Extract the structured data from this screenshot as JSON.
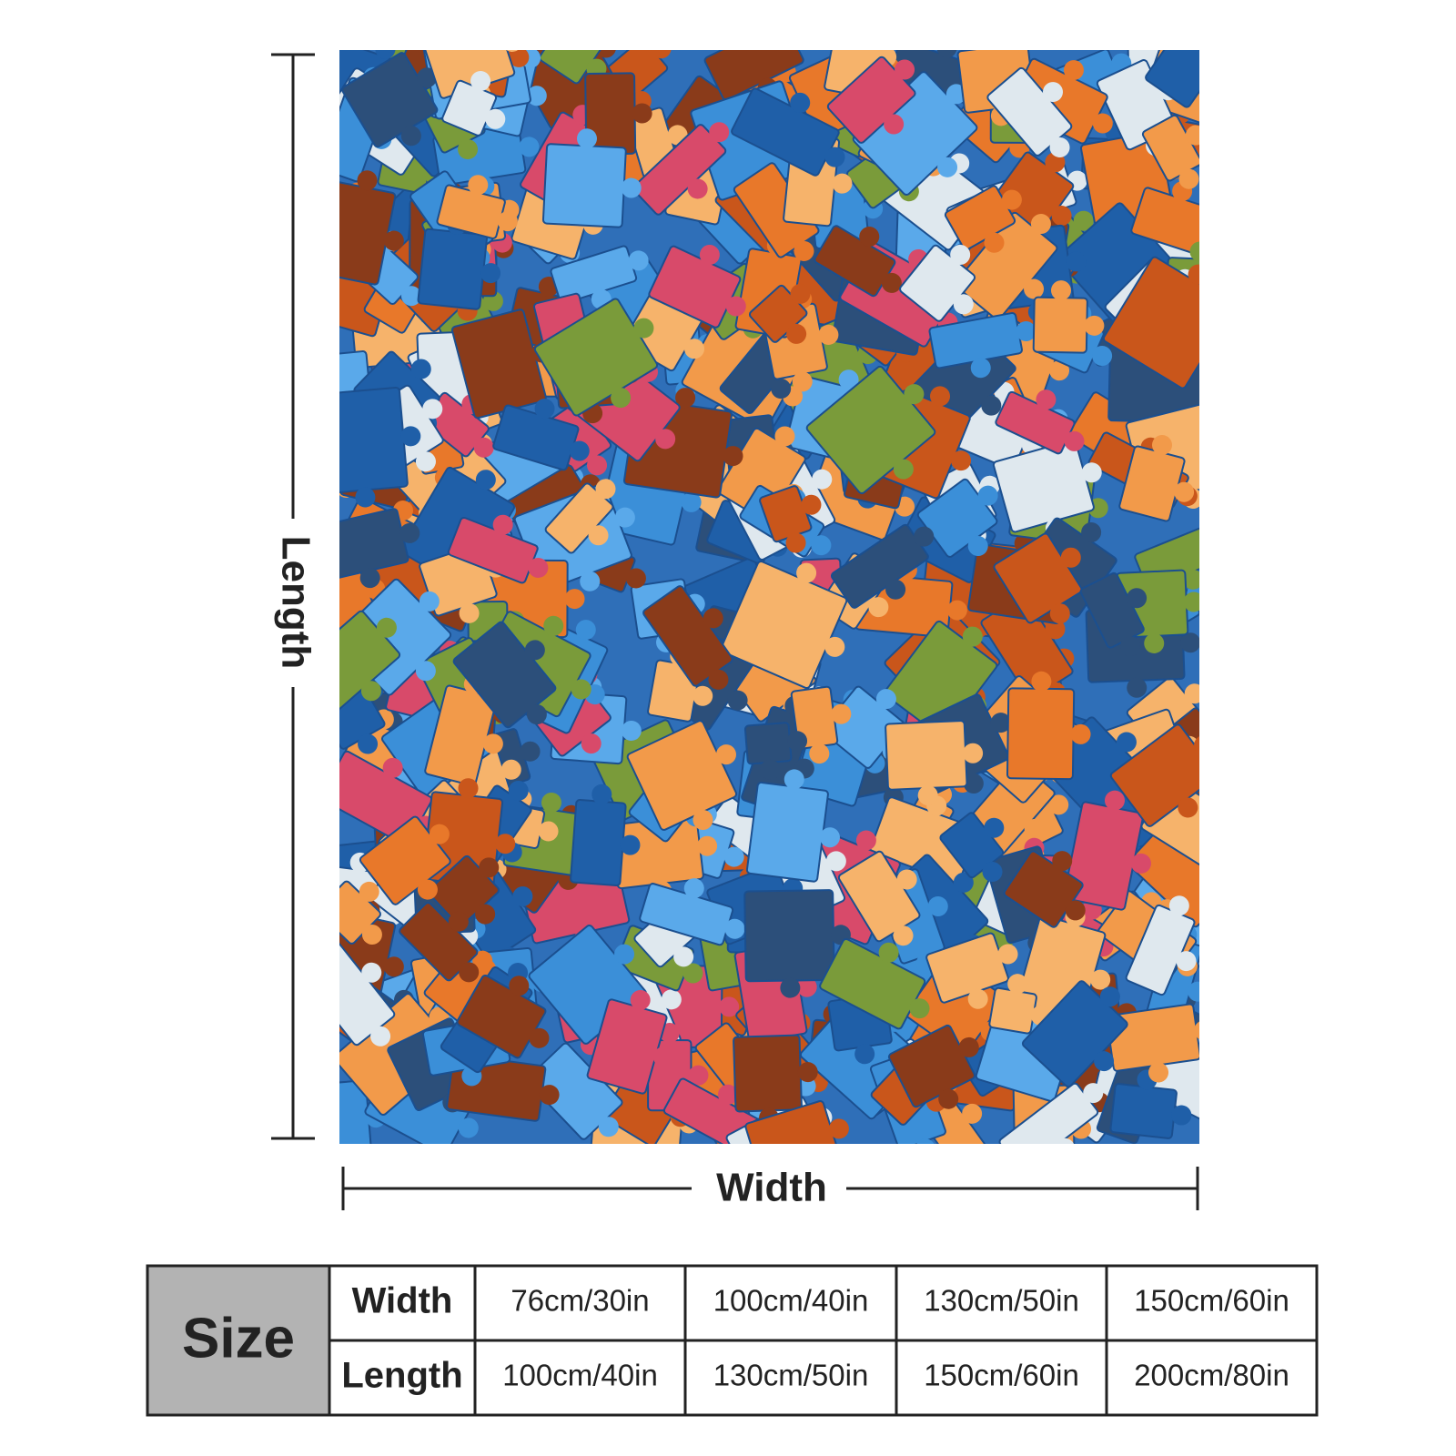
{
  "dimensions": {
    "length_label": "Length",
    "width_label": "Width"
  },
  "size_table": {
    "header": "Size",
    "rows": [
      {
        "label": "Width",
        "values": [
          "76cm/30in",
          "100cm/40in",
          "130cm/50in",
          "150cm/60in"
        ]
      },
      {
        "label": "Length",
        "values": [
          "100cm/40in",
          "130cm/50in",
          "150cm/60in",
          "200cm/80in"
        ]
      }
    ]
  }
}
